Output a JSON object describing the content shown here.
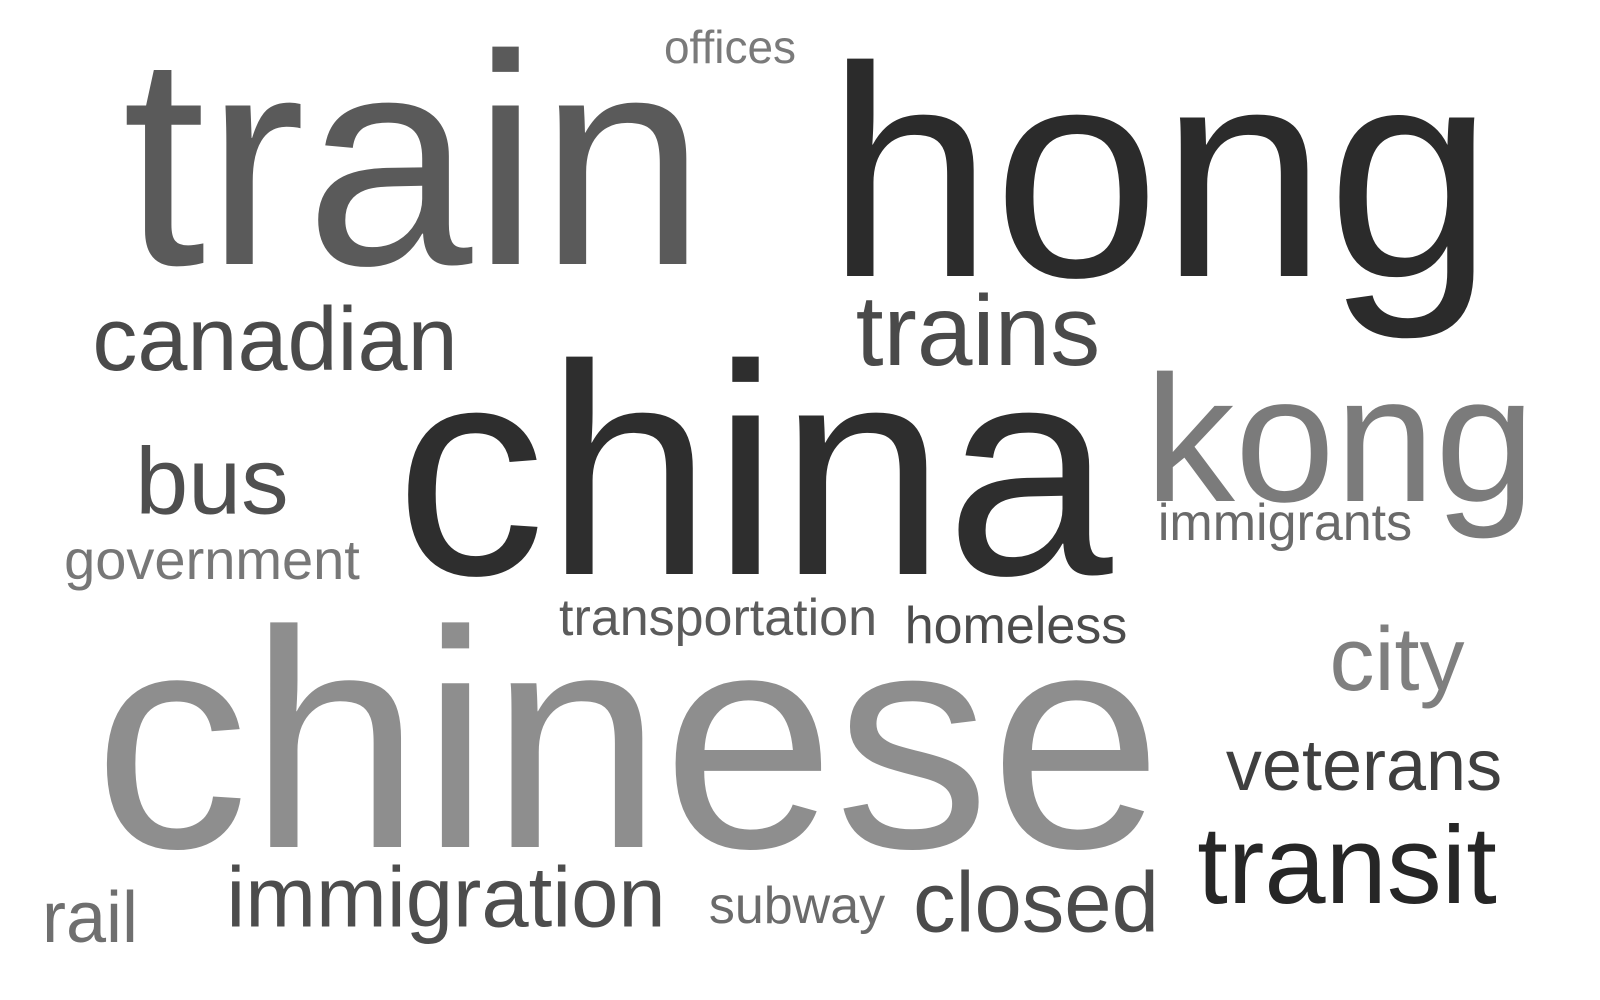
{
  "words": [
    {
      "text": "train",
      "color": "#5a5a5a"
    },
    {
      "text": "hong",
      "color": "#2b2b2b"
    },
    {
      "text": "offices",
      "color": "#7a7a7a"
    },
    {
      "text": "canadian",
      "color": "#4a4a4a"
    },
    {
      "text": "trains",
      "color": "#4a4a4a"
    },
    {
      "text": "china",
      "color": "#2e2e2e"
    },
    {
      "text": "kong",
      "color": "#7b7b7b"
    },
    {
      "text": "bus",
      "color": "#4f4f4f"
    },
    {
      "text": "government",
      "color": "#777777"
    },
    {
      "text": "immigrants",
      "color": "#6a6a6a"
    },
    {
      "text": "transportation",
      "color": "#5b5b5b"
    },
    {
      "text": "homeless",
      "color": "#4c4c4c"
    },
    {
      "text": "city",
      "color": "#7f7f7f"
    },
    {
      "text": "chinese",
      "color": "#8e8e8e"
    },
    {
      "text": "veterans",
      "color": "#3f3f3f"
    },
    {
      "text": "transit",
      "color": "#262626"
    },
    {
      "text": "immigration",
      "color": "#4d4d4d"
    },
    {
      "text": "subway",
      "color": "#6b6b6b"
    },
    {
      "text": "closed",
      "color": "#4b4b4b"
    },
    {
      "text": "rail",
      "color": "#6f6f6f"
    }
  ]
}
